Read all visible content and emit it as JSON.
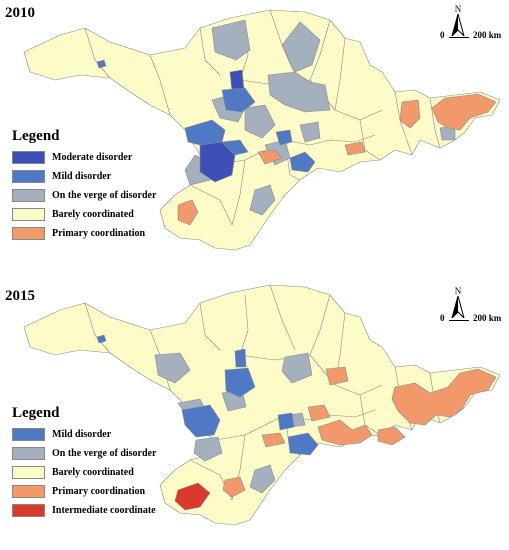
{
  "map_2010": {
    "year": "2010",
    "legend": {
      "title": "Legend",
      "items": [
        {
          "label": "Moderate disorder",
          "color": "#3f4fb8"
        },
        {
          "label": "Mild disorder",
          "color": "#4f79c4"
        },
        {
          "label": "On the verge of disorder",
          "color": "#a4b0bd"
        },
        {
          "label": "Barely coordinated",
          "color": "#fdfbc7"
        },
        {
          "label": "Primary coordination",
          "color": "#f2996c"
        }
      ]
    },
    "north": "N",
    "scale": {
      "start": "0",
      "end": "200 km"
    }
  },
  "map_2015": {
    "year": "2015",
    "legend": {
      "title": "Legend",
      "items": [
        {
          "label": "Mild disorder",
          "color": "#4f79c4"
        },
        {
          "label": "On the verge of disorder",
          "color": "#a4b0bd"
        },
        {
          "label": "Barely coordinated",
          "color": "#fdfbc7"
        },
        {
          "label": "Primary coordination",
          "color": "#f2996c"
        },
        {
          "label": "Intermediate coordinate",
          "color": "#d93a2c"
        }
      ]
    },
    "north": "N",
    "scale": {
      "start": "0",
      "end": "200 km"
    }
  }
}
